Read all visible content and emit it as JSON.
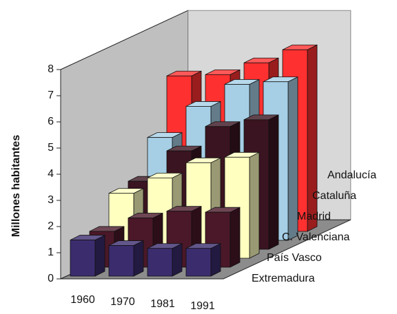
{
  "chart_data": {
    "type": "bar3d",
    "y_axis_label": "Millones habitantes",
    "categories": [
      "1960",
      "1970",
      "1981",
      "1991"
    ],
    "series": [
      {
        "name": "Extremadura",
        "color": "#3b2c6e",
        "values": [
          1.38,
          1.17,
          1.06,
          1.06
        ]
      },
      {
        "name": "País Vasco",
        "color": "#4a1828",
        "values": [
          1.37,
          1.88,
          2.14,
          2.1
        ]
      },
      {
        "name": "C. Valenciana",
        "color": "#ffffc0",
        "values": [
          2.48,
          3.07,
          3.65,
          3.86
        ]
      },
      {
        "name": "Madrid",
        "color": "#3a1420",
        "values": [
          2.6,
          3.76,
          4.69,
          4.95
        ]
      },
      {
        "name": "Cataluña",
        "color": "#a6cfe6",
        "values": [
          3.93,
          5.12,
          5.96,
          6.06
        ]
      },
      {
        "name": "Andalucía",
        "color": "#ff3030",
        "values": [
          5.94,
          5.99,
          6.44,
          6.94
        ]
      }
    ],
    "ylim": [
      0,
      8
    ],
    "yticks": [
      0,
      1,
      2,
      3,
      4,
      5,
      6,
      7,
      8
    ]
  }
}
